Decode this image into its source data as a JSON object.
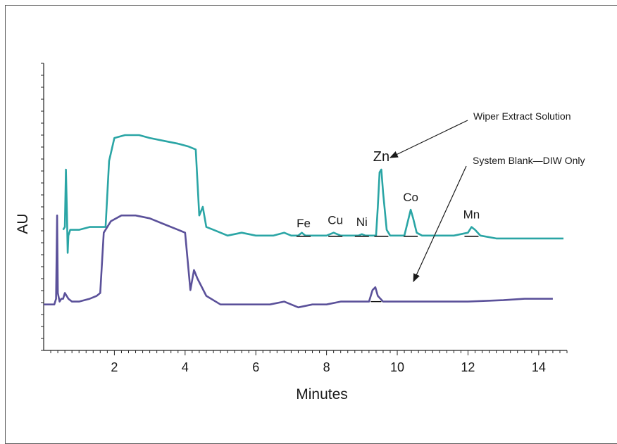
{
  "chart_data": {
    "type": "line",
    "xlabel": "Minutes",
    "ylabel": "AU",
    "xlim": [
      0,
      14.8
    ],
    "ylim": [
      0,
      1
    ],
    "x_ticks": [
      2,
      4,
      6,
      8,
      10,
      12,
      14
    ],
    "y_ticks_count": 24,
    "grid": false,
    "series": [
      {
        "color": "#2aa5a5",
        "points": [
          [
            0.55,
            0.42
          ],
          [
            0.6,
            0.43
          ],
          [
            0.63,
            0.63
          ],
          [
            0.66,
            0.47
          ],
          [
            0.68,
            0.34
          ],
          [
            0.7,
            0.4
          ],
          [
            0.75,
            0.42
          ],
          [
            0.8,
            0.42
          ],
          [
            1.0,
            0.42
          ],
          [
            1.3,
            0.43
          ],
          [
            1.6,
            0.43
          ],
          [
            1.75,
            0.43
          ],
          [
            1.85,
            0.66
          ],
          [
            2.0,
            0.74
          ],
          [
            2.3,
            0.75
          ],
          [
            2.7,
            0.75
          ],
          [
            3.0,
            0.74
          ],
          [
            3.4,
            0.73
          ],
          [
            3.8,
            0.72
          ],
          [
            4.1,
            0.71
          ],
          [
            4.3,
            0.7
          ],
          [
            4.4,
            0.47
          ],
          [
            4.5,
            0.5
          ],
          [
            4.6,
            0.43
          ],
          [
            4.8,
            0.42
          ],
          [
            5.2,
            0.4
          ],
          [
            5.6,
            0.41
          ],
          [
            6.0,
            0.4
          ],
          [
            6.5,
            0.4
          ],
          [
            6.8,
            0.41
          ],
          [
            7.0,
            0.4
          ],
          [
            7.2,
            0.4
          ],
          [
            7.3,
            0.41
          ],
          [
            7.4,
            0.4
          ],
          [
            8.0,
            0.4
          ],
          [
            8.2,
            0.41
          ],
          [
            8.4,
            0.4
          ],
          [
            8.9,
            0.4
          ],
          [
            9.0,
            0.405
          ],
          [
            9.1,
            0.4
          ],
          [
            9.4,
            0.4
          ],
          [
            9.45,
            0.5
          ],
          [
            9.5,
            0.62
          ],
          [
            9.55,
            0.63
          ],
          [
            9.6,
            0.55
          ],
          [
            9.7,
            0.42
          ],
          [
            9.8,
            0.4
          ],
          [
            10.2,
            0.4
          ],
          [
            10.3,
            0.45
          ],
          [
            10.38,
            0.49
          ],
          [
            10.45,
            0.46
          ],
          [
            10.55,
            0.41
          ],
          [
            10.7,
            0.4
          ],
          [
            11.0,
            0.4
          ],
          [
            11.6,
            0.4
          ],
          [
            12.0,
            0.41
          ],
          [
            12.1,
            0.43
          ],
          [
            12.2,
            0.42
          ],
          [
            12.35,
            0.4
          ],
          [
            12.8,
            0.39
          ],
          [
            13.5,
            0.39
          ],
          [
            14.0,
            0.39
          ],
          [
            14.7,
            0.39
          ]
        ]
      },
      {
        "color": "#5b519a",
        "points": [
          [
            0.0,
            0.16
          ],
          [
            0.3,
            0.16
          ],
          [
            0.35,
            0.18
          ],
          [
            0.38,
            0.47
          ],
          [
            0.4,
            0.2
          ],
          [
            0.45,
            0.17
          ],
          [
            0.5,
            0.18
          ],
          [
            0.55,
            0.18
          ],
          [
            0.6,
            0.2
          ],
          [
            0.7,
            0.18
          ],
          [
            0.8,
            0.17
          ],
          [
            1.0,
            0.17
          ],
          [
            1.3,
            0.18
          ],
          [
            1.5,
            0.19
          ],
          [
            1.6,
            0.2
          ],
          [
            1.7,
            0.41
          ],
          [
            1.9,
            0.45
          ],
          [
            2.2,
            0.47
          ],
          [
            2.6,
            0.47
          ],
          [
            3.0,
            0.46
          ],
          [
            3.4,
            0.44
          ],
          [
            3.8,
            0.42
          ],
          [
            4.0,
            0.41
          ],
          [
            4.15,
            0.21
          ],
          [
            4.25,
            0.28
          ],
          [
            4.35,
            0.25
          ],
          [
            4.6,
            0.19
          ],
          [
            5.0,
            0.16
          ],
          [
            5.3,
            0.16
          ],
          [
            5.8,
            0.16
          ],
          [
            6.4,
            0.16
          ],
          [
            6.8,
            0.17
          ],
          [
            7.0,
            0.16
          ],
          [
            7.2,
            0.15
          ],
          [
            7.6,
            0.16
          ],
          [
            8.0,
            0.16
          ],
          [
            8.4,
            0.17
          ],
          [
            9.0,
            0.17
          ],
          [
            9.2,
            0.17
          ],
          [
            9.3,
            0.21
          ],
          [
            9.38,
            0.22
          ],
          [
            9.45,
            0.19
          ],
          [
            9.6,
            0.17
          ],
          [
            10.0,
            0.17
          ],
          [
            11.0,
            0.17
          ],
          [
            12.0,
            0.17
          ],
          [
            13.0,
            0.175
          ],
          [
            13.6,
            0.18
          ],
          [
            14.2,
            0.18
          ],
          [
            14.4,
            0.18
          ]
        ]
      }
    ],
    "peaks": [
      {
        "label": "Fe",
        "x": 7.35,
        "y": 0.4
      },
      {
        "label": "Cu",
        "x": 8.25,
        "y": 0.41
      },
      {
        "label": "Ni",
        "x": 9.0,
        "y": 0.405
      },
      {
        "label": "Zn",
        "x": 9.55,
        "y": 0.63
      },
      {
        "label": "Co",
        "x": 10.38,
        "y": 0.49
      },
      {
        "label": "Mn",
        "x": 12.1,
        "y": 0.43
      }
    ],
    "annotations": [
      {
        "text": "Wiper Extract Solution"
      },
      {
        "text": "System Blank—DIW Only"
      }
    ]
  }
}
